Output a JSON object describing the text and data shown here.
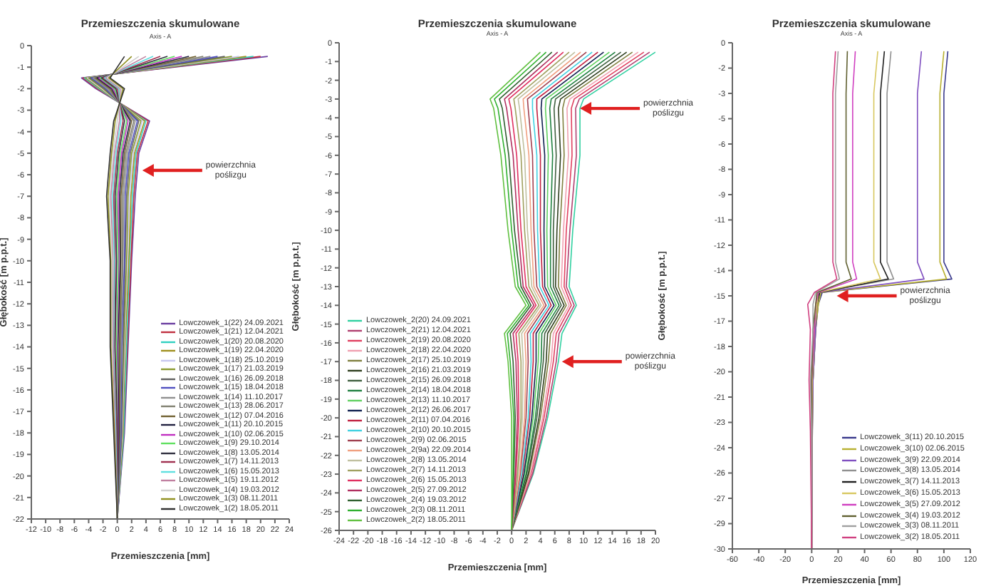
{
  "chart_data": [
    {
      "type": "line",
      "title": "Przemieszczenia skumulowane",
      "xlabel": "Przemieszczenia [mm]",
      "ylabel": "Głębokość [m p.p.t.]",
      "legend": "bottom right",
      "annotations": [
        "Axis - A",
        {
          "text": "powierzchnia poślizgu",
          "x": 3.5,
          "y": -5.8
        }
      ],
      "xlim": [
        -12,
        24
      ],
      "xticks": [
        -12,
        -10,
        -8,
        -6,
        -4,
        -2,
        0,
        2,
        4,
        6,
        8,
        10,
        12,
        14,
        16,
        18,
        20,
        22,
        24
      ],
      "ylim": [
        -22,
        0
      ],
      "yticks": [
        0,
        -1,
        -2,
        -3,
        -4,
        -5,
        -6,
        -7,
        -8,
        -9,
        -10,
        -11,
        -12,
        -13,
        -14,
        -15,
        -16,
        -17,
        -18,
        -19,
        -20,
        -21,
        -22
      ],
      "series": [
        {
          "name": "Lowczowek_1(22) 24.09.2021",
          "color": "#6a3da0",
          "x": [
            21,
            -5,
            -3,
            4.5,
            3,
            2.5,
            2,
            1.5,
            1,
            0
          ],
          "values": [
            -0.5,
            -1.5,
            -2,
            -3.5,
            -5,
            -7,
            -10,
            -14,
            -18,
            -22
          ]
        },
        {
          "name": "Lowczowek_1(21) 12.04.2021",
          "color": "#c03040",
          "x": [
            20,
            -4.8,
            -2.8,
            4.3,
            2.8,
            2.3,
            1.9,
            1.4,
            0.9,
            0
          ],
          "values": [
            -0.5,
            -1.5,
            -2,
            -3.5,
            -5,
            -7,
            -10,
            -14,
            -18,
            -22
          ]
        },
        {
          "name": "Lowczowek_1(20) 20.08.2020",
          "color": "#30d0c0",
          "x": [
            19,
            -4.6,
            -2.6,
            4,
            2.6,
            2.1,
            1.7,
            1.3,
            0.9,
            0
          ],
          "values": [
            -0.5,
            -1.5,
            -2,
            -3.5,
            -5,
            -7,
            -10,
            -14,
            -18,
            -22
          ]
        },
        {
          "name": "Lowczowek_1(19) 22.04.2020",
          "color": "#a09020",
          "x": [
            18,
            -4.4,
            -2.4,
            3.8,
            2.4,
            1.9,
            1.6,
            1.1,
            0.8,
            0
          ],
          "values": [
            -0.5,
            -1.5,
            -2,
            -3.5,
            -5,
            -7,
            -10,
            -14,
            -18,
            -22
          ]
        },
        {
          "name": "Lowczowek_1(18) 25.10.2019",
          "color": "#c8c8f0",
          "x": [
            17,
            -4.2,
            -2.2,
            3.5,
            2.2,
            1.7,
            1.4,
            1,
            0.7,
            0
          ],
          "values": [
            -0.5,
            -1.5,
            -2,
            -3.5,
            -5,
            -7,
            -10,
            -14,
            -18,
            -22
          ]
        },
        {
          "name": "Lowczowek_1(17) 21.03.2019",
          "color": "#8a9a30",
          "x": [
            16,
            -4,
            -2,
            3.3,
            2,
            1.5,
            1.3,
            0.9,
            0.6,
            0
          ],
          "values": [
            -0.5,
            -1.5,
            -2,
            -3.5,
            -5,
            -7,
            -10,
            -14,
            -18,
            -22
          ]
        },
        {
          "name": "Lowczowek_1(16) 26.09.2018",
          "color": "#606060",
          "x": [
            15,
            -3.8,
            -1.8,
            3,
            1.8,
            1.3,
            1.1,
            0.8,
            0.6,
            0
          ],
          "values": [
            -0.5,
            -1.5,
            -2,
            -3.5,
            -5,
            -7,
            -10,
            -14,
            -18,
            -22
          ]
        },
        {
          "name": "Lowczowek_1(15) 18.04.2018",
          "color": "#5050c0",
          "x": [
            14,
            -3.6,
            -1.6,
            2.8,
            1.6,
            1.1,
            1,
            0.6,
            0.5,
            0
          ],
          "values": [
            -0.5,
            -1.5,
            -2,
            -3.5,
            -5,
            -7,
            -10,
            -14,
            -18,
            -22
          ]
        },
        {
          "name": "Lowczowek_1(14) 11.10.2017",
          "color": "#909090",
          "x": [
            13,
            -3.4,
            -1.4,
            2.5,
            1.4,
            0.9,
            0.8,
            0.5,
            0.4,
            0
          ],
          "values": [
            -0.5,
            -1.5,
            -2,
            -3.5,
            -5,
            -7,
            -10,
            -14,
            -18,
            -22
          ]
        },
        {
          "name": "Lowczowek_1(13) 28.06.2017",
          "color": "#808070",
          "x": [
            12,
            -3.2,
            -1.2,
            2.3,
            1.2,
            0.7,
            0.7,
            0.4,
            0.3,
            0
          ],
          "values": [
            -0.5,
            -1.5,
            -2,
            -3.5,
            -5,
            -7,
            -10,
            -14,
            -18,
            -22
          ]
        },
        {
          "name": "Lowczowek_1(12) 07.04.2016",
          "color": "#706030",
          "x": [
            11,
            -3,
            -1,
            2,
            1,
            0.5,
            0.5,
            0.3,
            0.3,
            0
          ],
          "values": [
            -0.5,
            -1.5,
            -2,
            -3.5,
            -5,
            -7,
            -10,
            -14,
            -18,
            -22
          ]
        },
        {
          "name": "Lowczowek_1(11) 20.10.2015",
          "color": "#202040",
          "x": [
            10,
            -2.8,
            -0.8,
            1.8,
            0.8,
            0.3,
            0.4,
            0.1,
            0.2,
            0
          ],
          "values": [
            -0.5,
            -1.5,
            -2,
            -3.5,
            -5,
            -7,
            -10,
            -14,
            -18,
            -22
          ]
        },
        {
          "name": "Lowczowek_1(10) 02.06.2015",
          "color": "#c030c0",
          "x": [
            9,
            -2.6,
            -0.6,
            1.5,
            0.6,
            0.1,
            0.2,
            0,
            0.1,
            0
          ],
          "values": [
            -0.5,
            -1.5,
            -2,
            -3.5,
            -5,
            -7,
            -10,
            -14,
            -18,
            -22
          ]
        },
        {
          "name": "Lowczowek_1(9) 29.10.2014",
          "color": "#60e060",
          "x": [
            8,
            -2.4,
            -0.4,
            1.3,
            0.4,
            -0.1,
            0.1,
            -0.1,
            0,
            0
          ],
          "values": [
            -0.5,
            -1.5,
            -2,
            -3.5,
            -5,
            -7,
            -10,
            -14,
            -18,
            -22
          ]
        },
        {
          "name": "Lowczowek_1(8) 13.05.2014",
          "color": "#303040",
          "x": [
            7,
            -2.2,
            -0.2,
            1,
            0.2,
            -0.3,
            -0.1,
            -0.3,
            0,
            0
          ],
          "values": [
            -0.5,
            -1.5,
            -2,
            -3.5,
            -5,
            -7,
            -10,
            -14,
            -18,
            -22
          ]
        },
        {
          "name": "Lowczowek_1(7) 14.11.2013",
          "color": "#a03050",
          "x": [
            6,
            -2,
            0,
            0.8,
            0,
            -0.5,
            -0.3,
            -0.4,
            -0.1,
            0
          ],
          "values": [
            -0.5,
            -1.5,
            -2,
            -3.5,
            -5,
            -7,
            -10,
            -14,
            -18,
            -22
          ]
        },
        {
          "name": "Lowczowek_1(6) 15.05.2013",
          "color": "#60e0e0",
          "x": [
            5,
            -1.8,
            0.2,
            0.5,
            -0.2,
            -0.7,
            -0.4,
            -0.5,
            -0.2,
            0
          ],
          "values": [
            -0.5,
            -1.5,
            -2,
            -3.5,
            -5,
            -7,
            -10,
            -14,
            -18,
            -22
          ]
        },
        {
          "name": "Lowczowek_1(5) 19.11.2012",
          "color": "#c080a0",
          "x": [
            4,
            -1.6,
            0.4,
            0.3,
            -0.4,
            -0.9,
            -0.6,
            -0.6,
            -0.3,
            0
          ],
          "values": [
            -0.5,
            -1.5,
            -2,
            -3.5,
            -5,
            -7,
            -10,
            -14,
            -18,
            -22
          ]
        },
        {
          "name": "Lowczowek_1(4) 19.03.2012",
          "color": "#d0d0d0",
          "x": [
            3,
            -1.4,
            0.6,
            0,
            -0.6,
            -1.1,
            -0.7,
            -0.8,
            -0.4,
            0
          ],
          "values": [
            -0.5,
            -1.5,
            -2,
            -3.5,
            -5,
            -7,
            -10,
            -14,
            -18,
            -22
          ]
        },
        {
          "name": "Lowczowek_1(3) 08.11.2011",
          "color": "#909020",
          "x": [
            2,
            -1.2,
            0.8,
            -0.3,
            -0.8,
            -1.3,
            -0.9,
            -0.9,
            -0.4,
            0
          ],
          "values": [
            -0.5,
            -1.5,
            -2,
            -3.5,
            -5,
            -7,
            -10,
            -14,
            -18,
            -22
          ]
        },
        {
          "name": "Lowczowek_1(2) 18.05.2011",
          "color": "#303030",
          "x": [
            1,
            -1,
            1,
            -0.5,
            -1,
            -1.5,
            -1,
            -1,
            -0.5,
            0
          ],
          "values": [
            -0.5,
            -1.5,
            -2,
            -3.5,
            -5,
            -7,
            -10,
            -14,
            -18,
            -22
          ]
        }
      ]
    },
    {
      "type": "line",
      "title": "Przemieszczenia skumulowane",
      "xlabel": "Przemieszczenia [mm]",
      "ylabel": "Głębokość [m p.p.t.]",
      "legend": "bottom left",
      "annotations": [
        "Axis - A",
        {
          "text": "powierzchnia poślizgu",
          "x": 9.5,
          "y": -3.5
        },
        {
          "text": "powierzchnia poślizgu",
          "x": 7,
          "y": -17
        }
      ],
      "xlim": [
        -24,
        20
      ],
      "xticks": [
        -24,
        -22,
        -20,
        -18,
        -16,
        -14,
        -12,
        -10,
        -8,
        -6,
        -4,
        -2,
        0,
        2,
        4,
        6,
        8,
        10,
        12,
        14,
        16,
        18,
        20
      ],
      "ylim": [
        -26,
        0
      ],
      "yticks": [
        0,
        -1,
        -2,
        -3,
        -4,
        -5,
        -6,
        -7,
        -8,
        -9,
        -10,
        -11,
        -12,
        -13,
        -14,
        -15,
        -16,
        -17,
        -18,
        -19,
        -20,
        -21,
        -22,
        -23,
        -24,
        -25,
        -26
      ],
      "series": [
        {
          "name": "Lowczowek_2(20) 24.09.2021",
          "color": "#30d0a0",
          "x": [
            20,
            10,
            9.5,
            9.5,
            8.5,
            8,
            9,
            7,
            6.5,
            5,
            3,
            0
          ],
          "values": [
            -0.5,
            -3,
            -3.5,
            -6,
            -10,
            -13,
            -14,
            -15.5,
            -17,
            -20,
            -23,
            -26
          ]
        },
        {
          "name": "Lowczowek_2(21) 12.04.2021",
          "color": "#b04070",
          "x": [
            19.2,
            9.4,
            8.9,
            9,
            8.1,
            7.6,
            8.7,
            6.6,
            6.2,
            4.8,
            2.9,
            0
          ],
          "values": [
            -0.5,
            -3,
            -3.5,
            -6,
            -10,
            -13,
            -14,
            -15.5,
            -17,
            -20,
            -23,
            -26
          ]
        },
        {
          "name": "Lowczowek_2(19) 20.08.2020",
          "color": "#e04060",
          "x": [
            18.4,
            8.7,
            8.3,
            8.4,
            7.6,
            7.3,
            8.3,
            6.2,
            5.8,
            4.5,
            2.7,
            0
          ],
          "values": [
            -0.5,
            -3,
            -3.5,
            -6,
            -10,
            -13,
            -14,
            -15.5,
            -17,
            -20,
            -23,
            -26
          ]
        },
        {
          "name": "Lowczowek_2(18) 22.04.2020",
          "color": "#f0a0b0",
          "x": [
            17.6,
            8.1,
            7.7,
            7.9,
            7.2,
            6.9,
            8,
            5.8,
            5.5,
            4.3,
            2.6,
            0
          ],
          "values": [
            -0.5,
            -3,
            -3.5,
            -6,
            -10,
            -13,
            -14,
            -15.5,
            -17,
            -20,
            -23,
            -26
          ]
        },
        {
          "name": "Lowczowek_2(17) 25.10.2019",
          "color": "#808040",
          "x": [
            16.8,
            7.4,
            7.1,
            7.3,
            6.7,
            6.5,
            7.6,
            5.4,
            5.1,
            4,
            2.4,
            0
          ],
          "values": [
            -0.5,
            -3,
            -3.5,
            -6,
            -10,
            -13,
            -14,
            -15.5,
            -17,
            -20,
            -23,
            -26
          ]
        },
        {
          "name": "Lowczowek_2(16) 21.03.2019",
          "color": "#304020",
          "x": [
            16,
            6.8,
            6.5,
            6.8,
            6.3,
            6.1,
            7.3,
            5,
            4.8,
            3.8,
            2.3,
            0
          ],
          "values": [
            -0.5,
            -3,
            -3.5,
            -6,
            -10,
            -13,
            -14,
            -15.5,
            -17,
            -20,
            -23,
            -26
          ]
        },
        {
          "name": "Lowczowek_2(15) 26.09.2018",
          "color": "#406040",
          "x": [
            15.2,
            6.1,
            5.9,
            6.2,
            5.8,
            5.8,
            6.9,
            4.6,
            4.4,
            3.5,
            2.1,
            0
          ],
          "values": [
            -0.5,
            -3,
            -3.5,
            -6,
            -10,
            -13,
            -14,
            -15.5,
            -17,
            -20,
            -23,
            -26
          ]
        },
        {
          "name": "Lowczowek_2(14) 18.04.2018",
          "color": "#208040",
          "x": [
            14.4,
            5.5,
            5.3,
            5.7,
            5.4,
            5.4,
            6.6,
            4.2,
            4.1,
            3.3,
            2,
            0
          ],
          "values": [
            -0.5,
            -3,
            -3.5,
            -6,
            -10,
            -13,
            -14,
            -15.5,
            -17,
            -20,
            -23,
            -26
          ]
        },
        {
          "name": "Lowczowek_2(13) 11.10.2017",
          "color": "#60d060",
          "x": [
            13.6,
            4.8,
            4.7,
            5.1,
            4.9,
            5,
            6.2,
            3.8,
            3.7,
            3,
            1.8,
            0
          ],
          "values": [
            -0.5,
            -3,
            -3.5,
            -6,
            -10,
            -13,
            -14,
            -15.5,
            -17,
            -20,
            -23,
            -26
          ]
        },
        {
          "name": "Lowczowek_2(12) 26.06.2017",
          "color": "#102050",
          "x": [
            12.8,
            4.2,
            4.1,
            4.6,
            4.5,
            4.6,
            5.9,
            3.4,
            3.4,
            2.8,
            1.7,
            0
          ],
          "values": [
            -0.5,
            -3,
            -3.5,
            -6,
            -10,
            -13,
            -14,
            -15.5,
            -17,
            -20,
            -23,
            -26
          ]
        },
        {
          "name": "Lowczowek_2(11) 07.04.2016",
          "color": "#c02040",
          "x": [
            12,
            3.5,
            3.5,
            4,
            4,
            4.3,
            5.5,
            3,
            3,
            2.5,
            1.5,
            0
          ],
          "values": [
            -0.5,
            -3,
            -3.5,
            -6,
            -10,
            -13,
            -14,
            -15.5,
            -17,
            -20,
            -23,
            -26
          ]
        },
        {
          "name": "Lowczowek_2(10) 20.10.2015",
          "color": "#40d0e0",
          "x": [
            11.2,
            2.9,
            2.9,
            3.5,
            3.6,
            3.9,
            5.2,
            2.6,
            2.7,
            2.3,
            1.4,
            0
          ],
          "values": [
            -0.5,
            -3,
            -3.5,
            -6,
            -10,
            -13,
            -14,
            -15.5,
            -17,
            -20,
            -23,
            -26
          ]
        },
        {
          "name": "Lowczowek_2(9) 02.06.2015",
          "color": "#a04050",
          "x": [
            10.4,
            2.2,
            2.3,
            2.9,
            3.1,
            3.5,
            4.8,
            2.2,
            2.3,
            2,
            1.2,
            0
          ],
          "values": [
            -0.5,
            -3,
            -3.5,
            -6,
            -10,
            -13,
            -14,
            -15.5,
            -17,
            -20,
            -23,
            -26
          ]
        },
        {
          "name": "Lowczowek_2(9a) 22.09.2014",
          "color": "#f0a080",
          "x": [
            9.6,
            1.6,
            1.7,
            2.4,
            2.7,
            3.1,
            4.5,
            1.8,
            2,
            1.8,
            1.1,
            0
          ],
          "values": [
            -0.5,
            -3,
            -3.5,
            -6,
            -10,
            -13,
            -14,
            -15.5,
            -17,
            -20,
            -23,
            -26
          ]
        },
        {
          "name": "Lowczowek_2(8) 13.05.2014",
          "color": "#c0c0a0",
          "x": [
            8.8,
            0.9,
            1.1,
            1.8,
            2.2,
            2.8,
            4.1,
            1.4,
            1.6,
            1.5,
            0.9,
            0
          ],
          "values": [
            -0.5,
            -3,
            -3.5,
            -6,
            -10,
            -13,
            -14,
            -15.5,
            -17,
            -20,
            -23,
            -26
          ]
        },
        {
          "name": "Lowczowek_2(7) 14.11.2013",
          "color": "#a0a060",
          "x": [
            8,
            0.3,
            0.5,
            1.3,
            1.8,
            2.4,
            3.8,
            1,
            1.3,
            1.3,
            0.8,
            0
          ],
          "values": [
            -0.5,
            -3,
            -3.5,
            -6,
            -10,
            -13,
            -14,
            -15.5,
            -17,
            -20,
            -23,
            -26
          ]
        },
        {
          "name": "Lowczowek_2(6) 15.05.2013",
          "color": "#e03060",
          "x": [
            7.2,
            -0.4,
            -0.1,
            0.7,
            1.3,
            2,
            3.4,
            0.6,
            0.9,
            1,
            0.6,
            0
          ],
          "values": [
            -0.5,
            -3,
            -3.5,
            -6,
            -10,
            -13,
            -14,
            -15.5,
            -17,
            -20,
            -23,
            -26
          ]
        },
        {
          "name": "Lowczowek_2(5) 27.09.2012",
          "color": "#b03060",
          "x": [
            6.4,
            -1,
            -0.7,
            0.2,
            0.9,
            1.6,
            3.1,
            0.2,
            0.6,
            0.8,
            0.5,
            0
          ],
          "values": [
            -0.5,
            -3,
            -3.5,
            -6,
            -10,
            -13,
            -14,
            -15.5,
            -17,
            -20,
            -23,
            -26
          ]
        },
        {
          "name": "Lowczowek_2(4) 19.03.2012",
          "color": "#306030",
          "x": [
            5.6,
            -1.7,
            -1.3,
            -0.4,
            0.4,
            1.3,
            2.7,
            -0.2,
            0.2,
            0.5,
            0.3,
            0
          ],
          "values": [
            -0.5,
            -3,
            -3.5,
            -6,
            -10,
            -13,
            -14,
            -15.5,
            -17,
            -20,
            -23,
            -26
          ]
        },
        {
          "name": "Lowczowek_2(3) 08.11.2011",
          "color": "#30b030",
          "x": [
            4.8,
            -2.4,
            -1.9,
            -0.9,
            0,
            0.9,
            2.4,
            -0.6,
            -0.2,
            0.3,
            0.2,
            0
          ],
          "values": [
            -0.5,
            -3,
            -3.5,
            -6,
            -10,
            -13,
            -14,
            -15.5,
            -17,
            -20,
            -23,
            -26
          ]
        },
        {
          "name": "Lowczowek_2(2) 18.05.2011",
          "color": "#60c040",
          "x": [
            4,
            -3,
            -2.5,
            -1.5,
            -0.5,
            0.5,
            2,
            -1,
            -0.5,
            0,
            0,
            0
          ],
          "values": [
            -0.5,
            -3,
            -3.5,
            -6,
            -10,
            -13,
            -14,
            -15.5,
            -17,
            -20,
            -23,
            -26
          ]
        }
      ]
    },
    {
      "type": "line",
      "title": "Przemieszczenia skumulowane",
      "xlabel": "Przemieszczenia [mm]",
      "ylabel": "Głębokość [m p.p.t.]",
      "legend": "bottom right",
      "annotations": [
        "Axis - A",
        {
          "text": "powierzchnia poślizgu",
          "x": 19,
          "y": -15
        }
      ],
      "xlim": [
        -60,
        120
      ],
      "xticks": [
        -60,
        -40,
        -20,
        0,
        20,
        40,
        60,
        80,
        100,
        120
      ],
      "ylim": [
        -30,
        0
      ],
      "yticks": [
        0,
        {
          "value": -1.5,
          "label": "-2"
        },
        -3,
        {
          "value": -4.5,
          "label": "-5"
        },
        -6,
        {
          "value": -7.5,
          "label": "-8"
        },
        -9,
        {
          "value": -10.5,
          "label": "-11"
        },
        -12,
        {
          "value": -13.5,
          "label": "-14"
        },
        -15,
        {
          "value": -16.5,
          "label": "-17"
        },
        -18,
        {
          "value": -19.5,
          "label": "-20"
        },
        -21,
        {
          "value": -22.5,
          "label": "-23"
        },
        -24,
        {
          "value": -25.5,
          "label": "-26"
        },
        -27,
        {
          "value": -28.5,
          "label": "-29"
        },
        -30
      ],
      "series": [
        {
          "name": "Lowczowek_3(11) 20.10.2015",
          "color": "#3a3a8c",
          "x": [
            103,
            100,
            100,
            106,
            8,
            5,
            3,
            1,
            0.5,
            0
          ],
          "values": [
            -0.5,
            -3,
            -13,
            -14,
            -14.8,
            -15.5,
            -17,
            -20,
            -23,
            -30
          ]
        },
        {
          "name": "Lowczowek_3(10) 02.06.2015",
          "color": "#b8b030",
          "x": [
            100,
            97,
            97,
            102,
            7,
            5,
            3,
            1,
            0.5,
            0
          ],
          "values": [
            -0.5,
            -3,
            -13,
            -14,
            -14.8,
            -15.5,
            -17,
            -20,
            -23,
            -30
          ]
        },
        {
          "name": "Lowczowek_3(9) 22.09.2014",
          "color": "#8050c0",
          "x": [
            83,
            80,
            80,
            85,
            6,
            4,
            3,
            1,
            0.5,
            0
          ],
          "values": [
            -0.5,
            -3,
            -13,
            -14,
            -14.8,
            -15.5,
            -17,
            -20,
            -23,
            -30
          ]
        },
        {
          "name": "Lowczowek_3(8) 13.05.2014",
          "color": "#909090",
          "x": [
            60,
            57,
            57,
            62,
            6,
            4,
            2,
            0.5,
            0.5,
            0
          ],
          "values": [
            -0.5,
            -3,
            -13,
            -14,
            -14.8,
            -15.5,
            -17,
            -20,
            -23,
            -30
          ]
        },
        {
          "name": "Lowczowek_3(7) 14.11.2013",
          "color": "#202020",
          "x": [
            55,
            52,
            52,
            58,
            6,
            4,
            2,
            0.5,
            0,
            0
          ],
          "values": [
            -0.5,
            -3,
            -13,
            -14,
            -14.8,
            -15.5,
            -17,
            -20,
            -23,
            -30
          ]
        },
        {
          "name": "Lowczowek_3(6) 15.05.2013",
          "color": "#d8c860",
          "x": [
            50,
            47,
            47,
            52,
            5,
            4,
            2,
            0.5,
            0,
            0
          ],
          "values": [
            -0.5,
            -3,
            -13,
            -14,
            -14.8,
            -15.5,
            -17,
            -20,
            -23,
            -30
          ]
        },
        {
          "name": "Lowczowek_3(5) 27.09.2012",
          "color": "#d040c0",
          "x": [
            33,
            31,
            31,
            34,
            5,
            3,
            2,
            0,
            0,
            0
          ],
          "values": [
            -0.5,
            -3,
            -13,
            -14,
            -14.8,
            -15.5,
            -17,
            -20,
            -23,
            -30
          ]
        },
        {
          "name": "Lowczowek_3(4) 19.03.2012",
          "color": "#606030",
          "x": [
            27,
            26,
            26,
            30,
            4,
            3,
            1,
            0,
            0,
            0
          ],
          "values": [
            -0.5,
            -3,
            -13,
            -14,
            -14.8,
            -15.5,
            -17,
            -20,
            -23,
            -30
          ]
        },
        {
          "name": "Lowczowek_3(3) 08.11.2011",
          "color": "#a0a0a0",
          "x": [
            20,
            18,
            18,
            21,
            3,
            1,
            1,
            -1,
            0,
            0
          ],
          "values": [
            -0.5,
            -3,
            -13,
            -14,
            -14.8,
            -15.5,
            -17,
            -20,
            -23,
            -30
          ]
        },
        {
          "name": "Lowczowek_3(2) 18.05.2011",
          "color": "#d04080",
          "x": [
            18,
            16,
            16,
            19,
            2,
            -3,
            -1,
            -2,
            -1,
            0
          ],
          "values": [
            -0.5,
            -3,
            -13,
            -14,
            -14.8,
            -15.5,
            -17,
            -20,
            -23,
            -30
          ]
        }
      ]
    }
  ]
}
